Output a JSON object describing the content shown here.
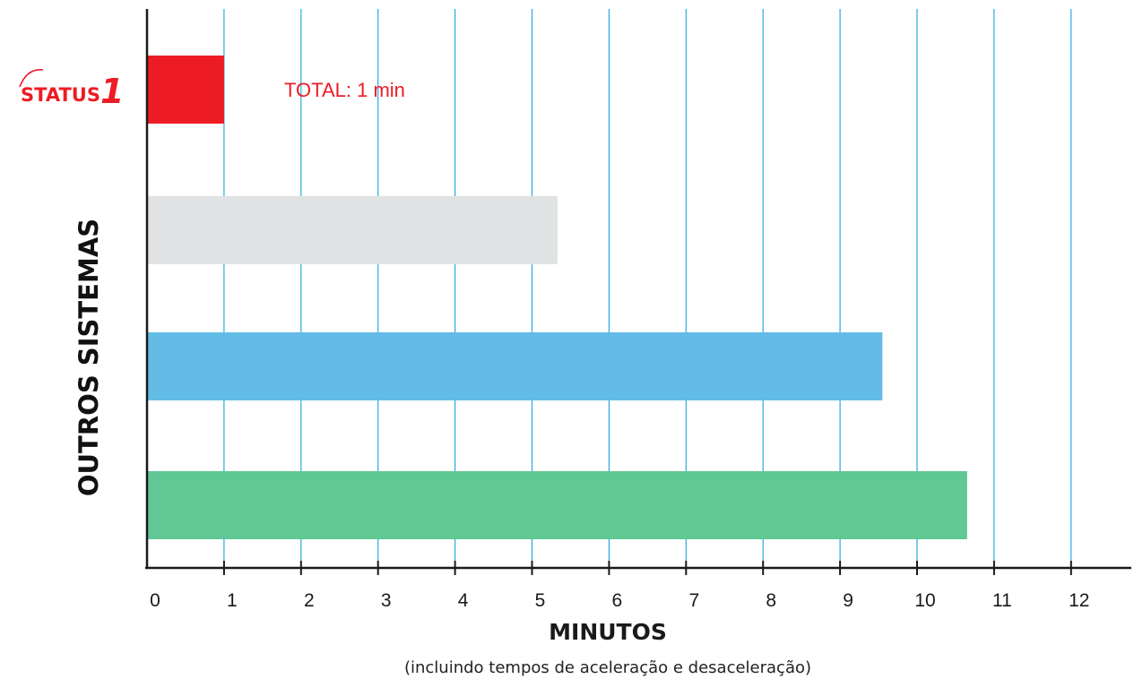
{
  "chart_data": {
    "type": "bar",
    "orientation": "horizontal",
    "categories": [
      "STATUS1",
      "",
      "",
      ""
    ],
    "values": [
      1,
      5.33,
      9.55,
      10.65
    ],
    "colors": [
      "#ed1c24",
      "#e1e2e3",
      "#62bce6",
      "#5fc894"
    ],
    "gridline_color": "#29abe2",
    "xlabel": "MINUTOS",
    "xlabel_note": "(incluindo tempos de aceleração e desaceleração)",
    "ylabel": "OUTROS SISTEMAS",
    "x_ticks": [
      "0",
      "1",
      "2",
      "3",
      "4",
      "5",
      "6",
      "7",
      "8",
      "9",
      "10",
      "11",
      "12"
    ],
    "xlim": [
      0,
      12
    ],
    "grid": true,
    "annotation": {
      "text": "TOTAL: 1 min",
      "color": "#ed1c24"
    },
    "logo": {
      "text": "STATUS",
      "numeral": "1",
      "color": "#ed1c24"
    }
  }
}
